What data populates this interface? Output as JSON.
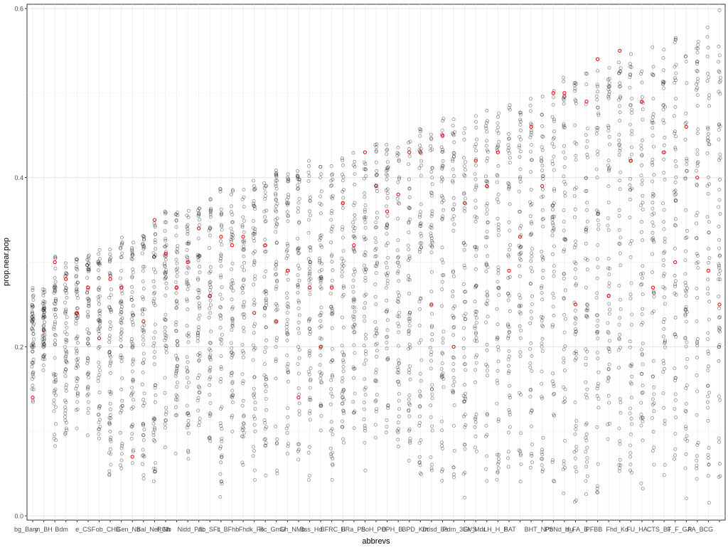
{
  "chart_data": {
    "type": "scatter",
    "xlabel": "abbrevs",
    "ylabel": "prop.near.pop",
    "ylim": [
      -0.005,
      0.605
    ],
    "y_ticks": [
      0.0,
      0.2,
      0.4,
      0.6
    ],
    "y_tick_labels": [
      "0.0",
      "0.2",
      "0.4",
      "0.6"
    ],
    "grid": true,
    "x_tick_labels_visible": [
      "bg_Bary",
      "m_BH",
      "Bdm",
      "e_CSF",
      "ob_CHB",
      "Gen_Nb",
      "Bal_Net_Nb",
      "RGh",
      "Nidd_Pdb",
      "Ac_SFL",
      "t_BFhb",
      "Fhdk_Fo",
      "Rc_GmU",
      "Gh_NMb",
      "Bss_Hd",
      "BFRC_B",
      "HRa_PS",
      "BoH_PO",
      "BPH_B",
      "BPD_Km",
      "Dtlsd_Bs",
      "Pdm_3GVS",
      "Ek_Mdr",
      "LH_H_P",
      "SAT",
      "BHT_NPb",
      "PSNd_Hu",
      "d_FA_B",
      "PFBB",
      "Fhd_Kd",
      "FU_HA",
      "CTS_BT",
      "F_F_GA",
      "PA_BCG"
    ],
    "categories_count": 63,
    "series": [
      {
        "name": "",
        "color": "#000000",
        "style": "open-circle-semitransparent",
        "category_ranges": [
          [
            0.13,
            0.27
          ],
          [
            0.17,
            0.27
          ],
          [
            0.07,
            0.31
          ],
          [
            0.09,
            0.3
          ],
          [
            0.1,
            0.31
          ],
          [
            0.09,
            0.31
          ],
          [
            0.09,
            0.32
          ],
          [
            0.04,
            0.32
          ],
          [
            0.05,
            0.33
          ],
          [
            0.06,
            0.33
          ],
          [
            0.03,
            0.34
          ],
          [
            0.03,
            0.35
          ],
          [
            0.07,
            0.36
          ],
          [
            0.07,
            0.36
          ],
          [
            0.04,
            0.37
          ],
          [
            0.09,
            0.37
          ],
          [
            0.08,
            0.38
          ],
          [
            0.02,
            0.39
          ],
          [
            0.09,
            0.39
          ],
          [
            0.06,
            0.39
          ],
          [
            0.03,
            0.4
          ],
          [
            0.04,
            0.4
          ],
          [
            0.03,
            0.41
          ],
          [
            0.06,
            0.41
          ],
          [
            0.06,
            0.41
          ],
          [
            0.03,
            0.42
          ],
          [
            0.08,
            0.42
          ],
          [
            0.04,
            0.42
          ],
          [
            0.05,
            0.43
          ],
          [
            0.08,
            0.43
          ],
          [
            0.05,
            0.43
          ],
          [
            0.09,
            0.44
          ],
          [
            0.06,
            0.44
          ],
          [
            0.07,
            0.45
          ],
          [
            0.05,
            0.45
          ],
          [
            0.04,
            0.46
          ],
          [
            0.05,
            0.46
          ],
          [
            0.03,
            0.47
          ],
          [
            0.04,
            0.47
          ],
          [
            0.02,
            0.47
          ],
          [
            0.05,
            0.48
          ],
          [
            0.03,
            0.48
          ],
          [
            0.02,
            0.49
          ],
          [
            0.05,
            0.49
          ],
          [
            0.03,
            0.49
          ],
          [
            0.04,
            0.5
          ],
          [
            0.04,
            0.5
          ],
          [
            0.03,
            0.51
          ],
          [
            0.02,
            0.52
          ],
          [
            0.01,
            0.52
          ],
          [
            0.02,
            0.53
          ],
          [
            0.02,
            0.53
          ],
          [
            0.02,
            0.54
          ],
          [
            0.03,
            0.54
          ],
          [
            0.04,
            0.55
          ],
          [
            0.02,
            0.55
          ],
          [
            0.03,
            0.56
          ],
          [
            0.03,
            0.56
          ],
          [
            0.04,
            0.57
          ],
          [
            0.02,
            0.58
          ],
          [
            0.03,
            0.58
          ],
          [
            0.01,
            0.59
          ],
          [
            0.02,
            0.6
          ]
        ]
      },
      {
        "name": "",
        "color": "#e8141c",
        "style": "open-circle",
        "values": [
          0.14,
          0.22,
          0.3,
          0.28,
          0.24,
          0.27,
          0.21,
          0.28,
          0.27,
          0.07,
          0.23,
          0.35,
          0.31,
          0.27,
          0.3,
          0.34,
          0.26,
          0.33,
          0.32,
          0.33,
          0.24,
          0.32,
          0.23,
          0.29,
          0.14,
          0.27,
          0.2,
          0.27,
          0.37,
          0.32,
          0.43,
          0.39,
          0.36,
          0.38,
          0.43,
          0.43,
          0.25,
          0.45,
          0.2,
          0.37,
          0.42,
          0.39,
          0.43,
          0.29,
          0.33,
          0.46,
          0.39,
          0.5,
          0.5,
          0.25,
          0.49,
          0.54,
          0.26,
          0.55,
          0.42,
          0.49,
          0.27,
          0.43,
          0.3,
          0.46,
          0.4,
          0.29,
          0.25
        ]
      }
    ]
  }
}
